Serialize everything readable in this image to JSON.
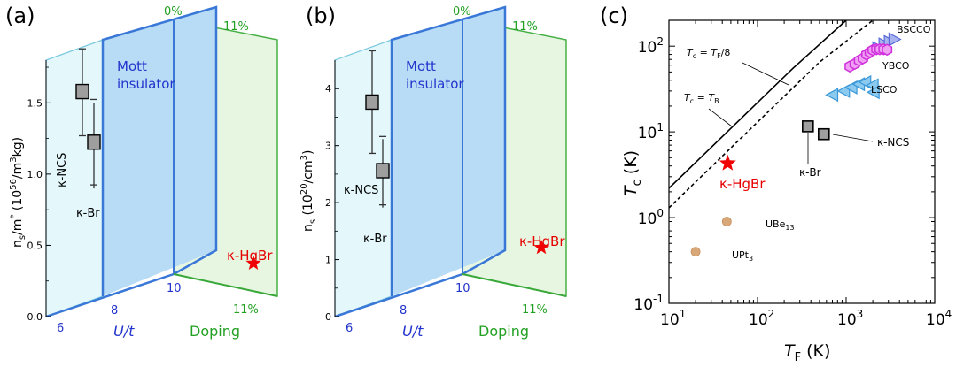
{
  "panels": {
    "a": {
      "label": "(a)",
      "ylabel_base": "n",
      "ylabel_sub": "s",
      "ylabel_rest": "/m",
      "ylabel_sup": "*",
      "ylabel_units": "(10",
      "ylabel_units_sup": "56",
      "ylabel_units_rest": "/m",
      "ylabel_units_sup2": "3",
      "ylabel_units_end": "kg)",
      "yticks": [
        "0.0",
        "0.5",
        "1.0",
        "1.5"
      ],
      "ut_ticks": [
        "6",
        "8",
        "10"
      ],
      "ut_label": "U/t",
      "mott_line1": "Mott",
      "mott_line2": "insulator",
      "doping_top_0": "0%",
      "doping_top_11": "11%",
      "doping_bottom_11": "11%",
      "doping_label": "Doping",
      "ncs_label": "κ-NCS",
      "br_label": "κ-Br",
      "hgbr_label": "κ-HgBr"
    },
    "b": {
      "label": "(b)",
      "ylabel_base": "n",
      "ylabel_sub": "s",
      "ylabel_units": "(10",
      "ylabel_units_sup": "20",
      "ylabel_units_rest": "/cm",
      "ylabel_units_sup2": "3",
      "ylabel_units_end": ")",
      "yticks": [
        "0",
        "1",
        "2",
        "3",
        "4"
      ],
      "ut_ticks": [
        "6",
        "8",
        "10"
      ],
      "ut_label": "U/t",
      "mott_line1": "Mott",
      "mott_line2": "insulator",
      "doping_top_0": "0%",
      "doping_top_11": "11%",
      "doping_bottom_11": "11%",
      "doping_label": "Doping",
      "ncs_label": "κ-NCS",
      "br_label": "κ-Br",
      "hgbr_label": "κ-HgBr"
    },
    "c": {
      "label": "(c)",
      "xlabel_main": "T",
      "xlabel_sub": "F",
      "xlabel_units": " (K)",
      "ylabel_main": "T",
      "ylabel_sub": "c",
      "ylabel_units": " (K)",
      "line1_label_a": "T",
      "line1_label_sub_a": "c",
      "line1_label_mid": " = ",
      "line1_label_b": "T",
      "line1_label_sub_b": "F",
      "line1_label_end": "/8",
      "line2_label_a": "T",
      "line2_label_sub_a": "c",
      "line2_label_mid": " = ",
      "line2_label_b": "T",
      "line2_label_sub_b": "B",
      "bscco": "BSCCO",
      "ybco": "YBCO",
      "lsco": "LSCO",
      "ncs": "κ-NCS",
      "br": "κ-Br",
      "hgbr": "κ-HgBr",
      "ube13": "UBe",
      "ube13_sub": "13",
      "upt3": "UPt",
      "upt3_sub": "3",
      "xticks": [
        {
          "base": "10",
          "exp": "1"
        },
        {
          "base": "10",
          "exp": "2"
        },
        {
          "base": "10",
          "exp": "3"
        },
        {
          "base": "10",
          "exp": "4"
        }
      ],
      "yticks": [
        {
          "base": "10",
          "exp": "-1"
        },
        {
          "base": "10",
          "exp": "0"
        },
        {
          "base": "10",
          "exp": "1"
        },
        {
          "base": "10",
          "exp": "2"
        }
      ]
    }
  },
  "chart_data": [
    {
      "type": "scatter",
      "panel": "a",
      "ylim": [
        0,
        1.8
      ],
      "points": [
        {
          "name": "κ-NCS",
          "y": 1.48,
          "err_low": 1.17,
          "err_high": 1.78
        },
        {
          "name": "κ-Br",
          "y": 1.1,
          "err_low": 0.8,
          "err_high": 1.4
        },
        {
          "name": "κ-HgBr",
          "y": 0.25
        }
      ]
    },
    {
      "type": "scatter",
      "panel": "b",
      "ylim": [
        0,
        4.5
      ],
      "points": [
        {
          "name": "κ-NCS",
          "y": 3.5,
          "err_low": 2.6,
          "err_high": 4.4
        },
        {
          "name": "κ-Br",
          "y": 2.25,
          "err_low": 1.65,
          "err_high": 2.85
        },
        {
          "name": "κ-HgBr",
          "y": 0.9
        }
      ]
    },
    {
      "type": "scatter",
      "panel": "c",
      "xscale": "log",
      "yscale": "log",
      "xlim": [
        10,
        10000
      ],
      "ylim": [
        0.1,
        200
      ],
      "series": [
        {
          "name": "BSCCO",
          "color": "#6f7fe0",
          "points": [
            [
              2300,
              95
            ],
            [
              2700,
              105
            ],
            [
              3100,
              112
            ],
            [
              3500,
              120
            ]
          ]
        },
        {
          "name": "YBCO",
          "color": "#e040e8",
          "points": [
            [
              1100,
              58
            ],
            [
              1250,
              62
            ],
            [
              1400,
              68
            ],
            [
              1550,
              72
            ],
            [
              1700,
              80
            ],
            [
              1850,
              85
            ],
            [
              2000,
              90
            ],
            [
              2200,
              92
            ],
            [
              2400,
              92
            ],
            [
              2650,
              92
            ],
            [
              2900,
              91
            ]
          ]
        },
        {
          "name": "LSCO",
          "color": "#4aa8e8",
          "points": [
            [
              700,
              27
            ],
            [
              950,
              30
            ],
            [
              1150,
              33
            ],
            [
              1400,
              36
            ],
            [
              1650,
              38
            ],
            [
              2000,
              35
            ],
            [
              2050,
              29
            ]
          ]
        },
        {
          "name": "κ-NCS",
          "color": "#999999",
          "points": [
            [
              560,
              9.4
            ]
          ]
        },
        {
          "name": "κ-Br",
          "color": "#999999",
          "points": [
            [
              370,
              11.6
            ]
          ]
        },
        {
          "name": "κ-HgBr",
          "color": "#e60000",
          "points": [
            [
              46,
              4.3
            ]
          ]
        },
        {
          "name": "UBe13",
          "color": "#d9a070",
          "points": [
            [
              45,
              0.9
            ]
          ]
        },
        {
          "name": "UPt3",
          "color": "#d9a070",
          "points": [
            [
              20,
              0.4
            ]
          ]
        }
      ],
      "lines": [
        {
          "name": "Tc = TF/8",
          "style": "solid",
          "points": [
            [
              10,
              2.2
            ],
            [
              250,
              55
            ],
            [
              1000,
              200
            ]
          ]
        },
        {
          "name": "Tc = TB",
          "style": "dashed",
          "points": [
            [
              10,
              1.3
            ],
            [
              500,
              65
            ],
            [
              2000,
              200
            ]
          ]
        }
      ]
    }
  ]
}
